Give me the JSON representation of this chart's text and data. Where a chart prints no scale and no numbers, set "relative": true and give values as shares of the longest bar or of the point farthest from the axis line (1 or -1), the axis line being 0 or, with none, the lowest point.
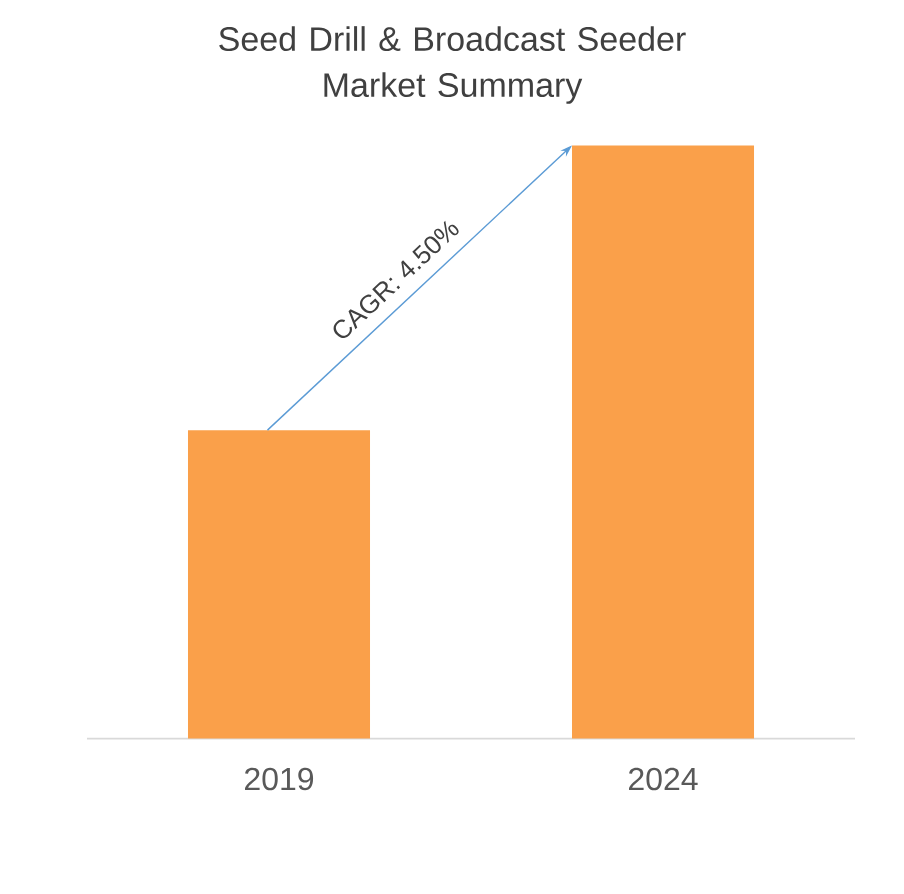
{
  "chart_data": {
    "type": "bar",
    "title": "Seed Drill & Broadcast Seeder Market Summary",
    "categories": [
      "2019",
      "2024"
    ],
    "values": [
      0.52,
      1
    ],
    "color": "#faa04a",
    "relative": true,
    "annotations": [
      "CAGR: 4.50%"
    ]
  }
}
